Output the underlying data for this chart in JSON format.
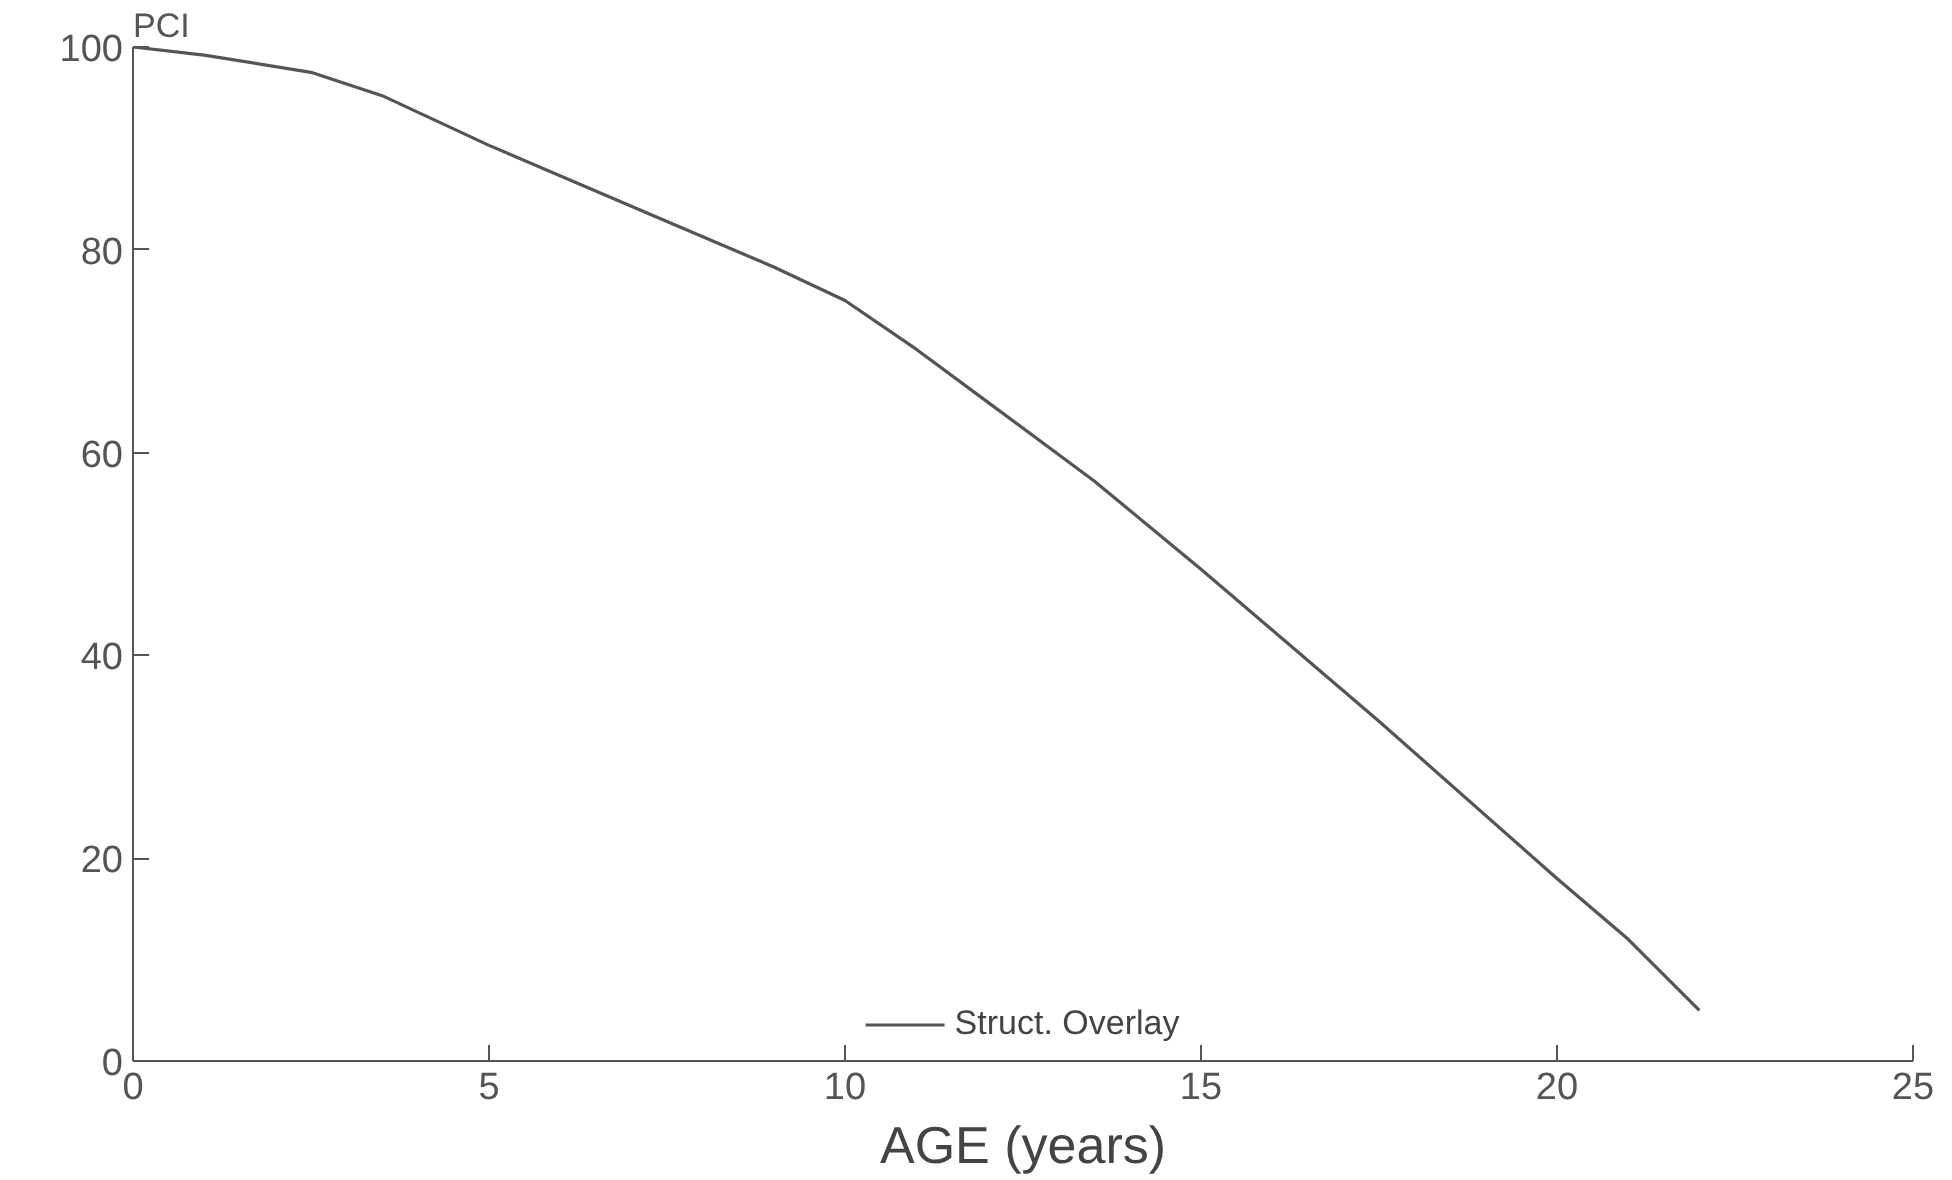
{
  "chart_data": {
    "type": "line",
    "xlabel": "AGE (years)",
    "ylabel": "PCI",
    "x": [
      0,
      1,
      2.5,
      3.5,
      5,
      7.5,
      9,
      10,
      11,
      12,
      13.5,
      15,
      17.5,
      20,
      21,
      22
    ],
    "series": [
      {
        "name": "Struct. Overlay",
        "color": "#555555",
        "values": [
          100,
          99.2,
          97.5,
          95.2,
          90.3,
          82.8,
          78.3,
          75,
          70.2,
          65,
          57.2,
          48.5,
          33.5,
          18,
          12,
          5
        ]
      }
    ],
    "xlim": [
      0,
      25
    ],
    "xticks": [
      0,
      5,
      10,
      15,
      20,
      25
    ],
    "ylim": [
      0,
      100
    ],
    "yticks": [
      0,
      20,
      40,
      60,
      80,
      100
    ],
    "grid": false,
    "legend": "bottom",
    "marker": "none",
    "line_style": "solid"
  }
}
